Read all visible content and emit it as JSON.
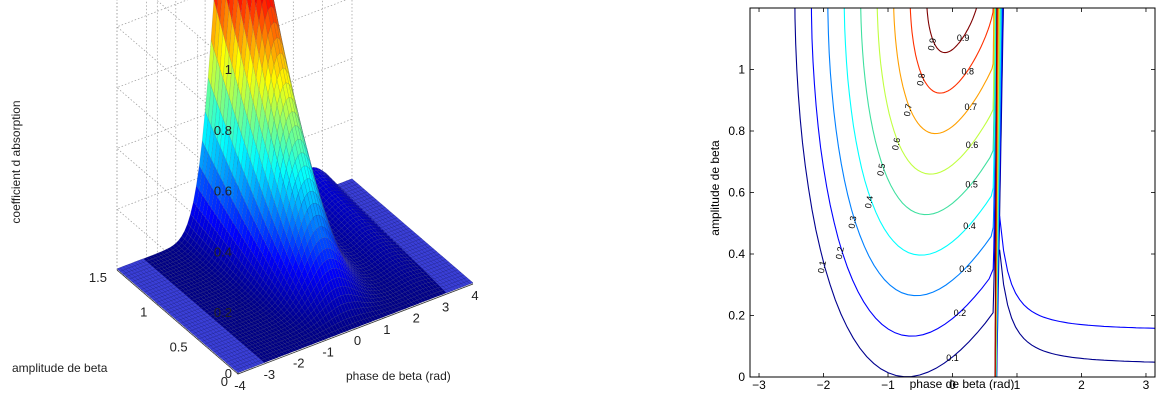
{
  "chart_data": [
    {
      "type": "surface3d",
      "title": "",
      "xlabel": "phase de beta (rad)",
      "ylabel": "amplitude de beta",
      "zlabel": "coefficient d absorption",
      "xlim": [
        -4,
        4
      ],
      "ylim": [
        0,
        1.5
      ],
      "zlim": [
        0,
        1
      ],
      "xticks": [
        "-4",
        "-3",
        "-2",
        "-1",
        "0",
        "1",
        "2",
        "3",
        "4"
      ],
      "yticks": [
        "0",
        "0.5",
        "1",
        "1.5"
      ],
      "zticks": [
        "0",
        "0.2",
        "0.4",
        "0.6",
        "0.8",
        "1"
      ],
      "peak": {
        "x": 0,
        "y": 1.2,
        "z": 1.0
      },
      "colormap": "jet",
      "grid": true
    },
    {
      "type": "contour",
      "title": "",
      "xlabel": "phase de beta (rad)",
      "ylabel": "amplitude de beta",
      "xlim": [
        -3.14,
        3.14
      ],
      "ylim": [
        0,
        1.2
      ],
      "xticks": [
        "-3",
        "-2",
        "-1",
        "0",
        "1",
        "2",
        "3"
      ],
      "yticks": [
        "0",
        "0.2",
        "0.4",
        "0.6",
        "0.8",
        "1"
      ],
      "levels": [
        0.1,
        0.2,
        0.3,
        0.4,
        0.5,
        0.6,
        0.7,
        0.8,
        0.9
      ],
      "level_labels": [
        "0.1",
        "0.2",
        "0.3",
        "0.4",
        "0.5",
        "0.6",
        "0.7",
        "0.8",
        "0.9"
      ],
      "level_colors": [
        "#00008f",
        "#0000ff",
        "#0080ff",
        "#00ffff",
        "#40e0a0",
        "#c0ff40",
        "#ffa000",
        "#ff3000",
        "#800000"
      ],
      "center": {
        "x": 0,
        "y": 1.2
      },
      "singularity_x": 0.65,
      "colormap": "jet",
      "grid": false
    }
  ]
}
